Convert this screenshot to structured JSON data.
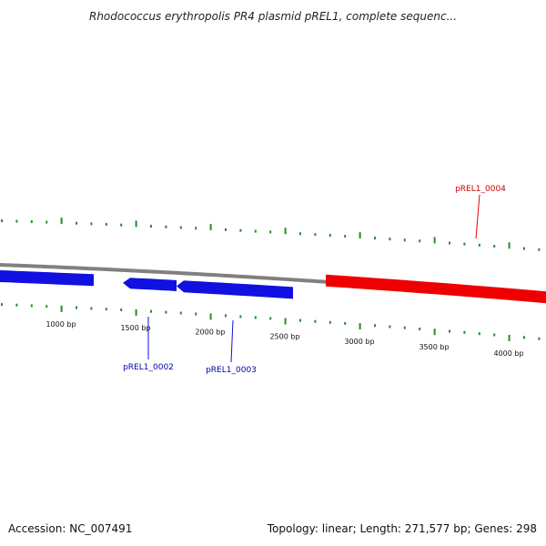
{
  "title": "Rhodococcus erythropolis PR4 plasmid pREL1, complete sequenc...",
  "footer": {
    "accession": "Accession: NC_007491",
    "summary": "Topology: linear; Length: 271,577 bp; Genes: 298"
  },
  "colors": {
    "backbone": "#808080",
    "tick": "#2a8a2a",
    "forward_gene": "#ee0000",
    "reverse_gene": "#1010e0",
    "forward_label": "#cc0000",
    "reverse_label": "#0000aa"
  },
  "scale_labels": [
    "1000 bp",
    "1500 bp",
    "2000 bp",
    "2500 bp",
    "3000 bp",
    "3500 bp",
    "4000 bp"
  ],
  "genes": [
    {
      "id": "gene-left-partial",
      "label": "",
      "strand": "reverse"
    },
    {
      "id": "gene-0002",
      "label": "pREL1_0002",
      "strand": "reverse"
    },
    {
      "id": "gene-0003",
      "label": "pREL1_0003",
      "strand": "reverse"
    },
    {
      "id": "gene-0004",
      "label": "pREL1_0004",
      "strand": "forward"
    }
  ]
}
